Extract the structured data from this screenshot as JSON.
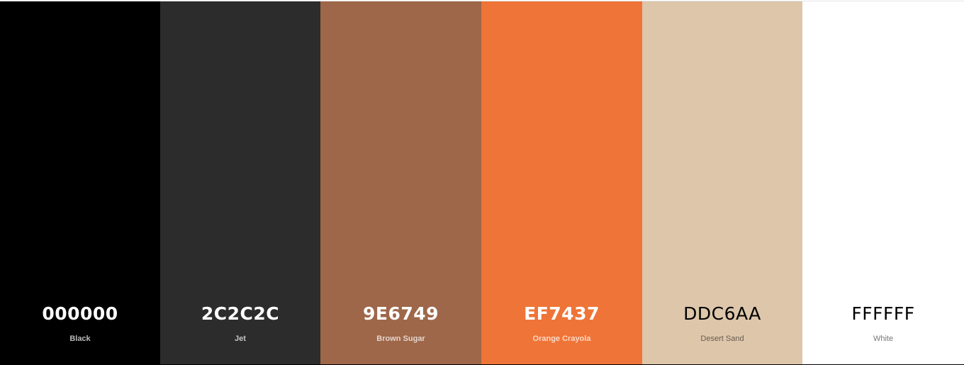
{
  "swatches": [
    {
      "hex": "000000",
      "name": "Black",
      "color": "#000000",
      "tone": "light"
    },
    {
      "hex": "2C2C2C",
      "name": "Jet",
      "color": "#2C2C2C",
      "tone": "light"
    },
    {
      "hex": "9E6749",
      "name": "Brown Sugar",
      "color": "#9E6749",
      "tone": "light"
    },
    {
      "hex": "EF7437",
      "name": "Orange Crayola",
      "color": "#EF7437",
      "tone": "light"
    },
    {
      "hex": "DDC6AA",
      "name": "Desert Sand",
      "color": "#DDC6AA",
      "tone": "dark"
    },
    {
      "hex": "FFFFFF",
      "name": "White",
      "color": "#FFFFFF",
      "tone": "dark"
    }
  ]
}
